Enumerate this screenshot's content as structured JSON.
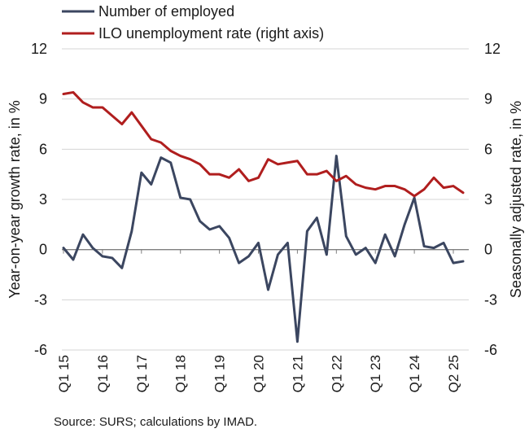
{
  "chart_data": {
    "type": "line",
    "title": "",
    "xlabel": "",
    "ylabel_left": "Year-on-year growth rate, in %",
    "ylabel_right": "Seasonally adjusted rate, in %",
    "ylim_left": [
      -6,
      12
    ],
    "ylim_right": [
      -6,
      12
    ],
    "yticks": [
      -6,
      -3,
      0,
      3,
      6,
      9,
      12
    ],
    "ytick_labels": [
      "-6",
      "-3",
      "0",
      "3",
      "6",
      "9",
      "12"
    ],
    "x_tick_labels": [
      {
        "index": 0,
        "label": "Q1 15"
      },
      {
        "index": 4,
        "label": "Q1 16"
      },
      {
        "index": 8,
        "label": "Q1 17"
      },
      {
        "index": 12,
        "label": "Q1 18"
      },
      {
        "index": 16,
        "label": "Q1 19"
      },
      {
        "index": 20,
        "label": "Q1 20"
      },
      {
        "index": 24,
        "label": "Q1 21"
      },
      {
        "index": 28,
        "label": "Q1 22"
      },
      {
        "index": 32,
        "label": "Q1 23"
      },
      {
        "index": 36,
        "label": "Q1 24"
      },
      {
        "index": 40,
        "label": "Q2 25"
      }
    ],
    "x_count": 42,
    "grid": "horizontal",
    "legend_position": "top-left",
    "series": [
      {
        "name": "Number of employed",
        "axis": "left",
        "color": "#3b4660",
        "values": [
          0.1,
          -0.6,
          0.9,
          0.1,
          -0.4,
          -0.5,
          -1.1,
          1.1,
          4.6,
          3.9,
          5.5,
          5.2,
          3.1,
          3.0,
          1.7,
          1.2,
          1.4,
          0.7,
          -0.8,
          -0.4,
          0.4,
          -2.4,
          -0.3,
          0.4,
          -5.5,
          1.1,
          1.9,
          -0.3,
          5.6,
          0.8,
          -0.3,
          0.1,
          -0.8,
          0.9,
          -0.4,
          1.5,
          3.1,
          0.2,
          0.1,
          0.4,
          -0.8,
          -0.7
        ]
      },
      {
        "name": "ILO unemployment rate (right axis)",
        "axis": "right",
        "color": "#b01e1e",
        "values": [
          9.3,
          9.4,
          8.8,
          8.5,
          8.5,
          8.0,
          7.5,
          8.2,
          7.4,
          6.6,
          6.4,
          5.9,
          5.6,
          5.4,
          5.1,
          4.5,
          4.5,
          4.3,
          4.8,
          4.1,
          4.3,
          5.4,
          5.1,
          5.2,
          5.3,
          4.5,
          4.5,
          4.7,
          4.1,
          4.4,
          3.9,
          3.7,
          3.6,
          3.8,
          3.8,
          3.6,
          3.2,
          3.6,
          4.3,
          3.7,
          3.8,
          3.4
        ]
      }
    ]
  },
  "source": "Source: SURS; calculations by IMAD."
}
